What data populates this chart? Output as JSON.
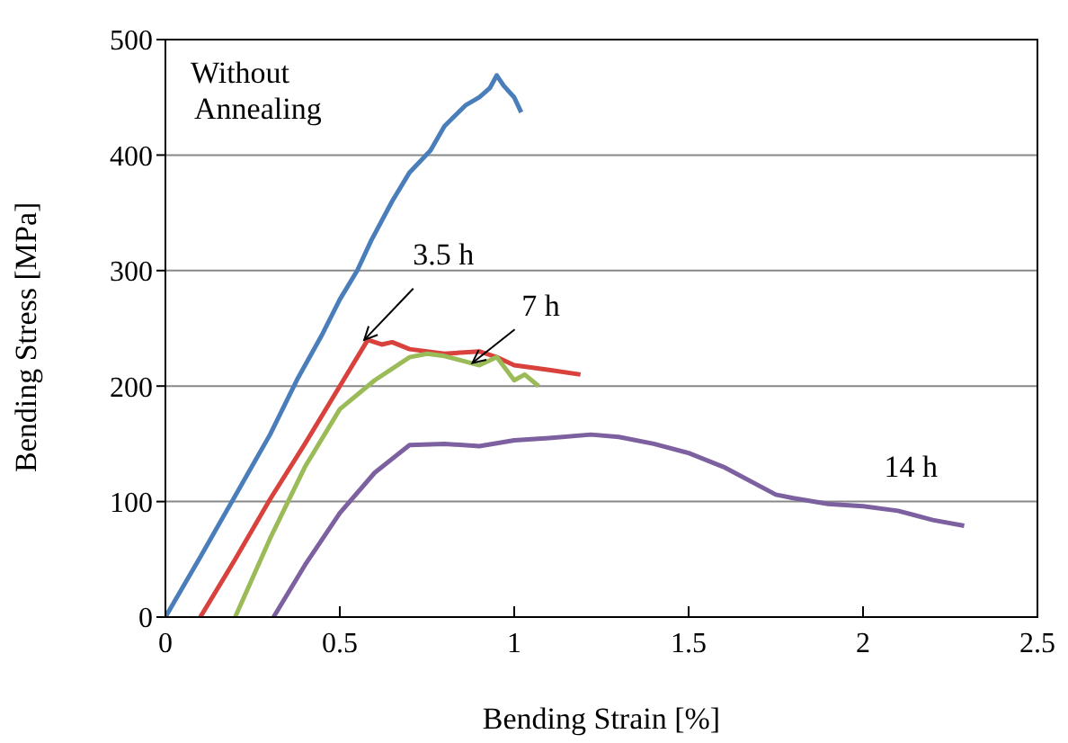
{
  "chart_data": {
    "type": "line",
    "xlabel": "Bending Strain [%]",
    "ylabel": "Bending Stress [MPa]",
    "xlim": [
      0,
      2.5
    ],
    "xticks": [
      0,
      0.5,
      1,
      1.5,
      2,
      2.5
    ],
    "ylim": [
      0,
      500
    ],
    "yticks": [
      0,
      100,
      200,
      300,
      400,
      500
    ],
    "grid": "y",
    "marker": "none",
    "line_style": "solid",
    "annotations": [
      "Without Annealing",
      {
        "text": "3.5 h",
        "x": 0.57,
        "y": 240
      },
      {
        "text": "7 h",
        "x": 0.88,
        "y": 220
      },
      "14 h"
    ],
    "series": [
      {
        "color": "#4a7ebb",
        "x": [
          0,
          0.1,
          0.2,
          0.3,
          0.38,
          0.45,
          0.5,
          0.55,
          0.59,
          0.65,
          0.7,
          0.76,
          0.8,
          0.86,
          0.9,
          0.93,
          0.95,
          0.97,
          1.0,
          1.02
        ],
        "values": [
          0,
          52,
          105,
          158,
          207,
          245,
          275,
          300,
          326,
          360,
          385,
          404,
          425,
          443,
          450,
          458,
          469,
          460,
          450,
          437
        ]
      },
      {
        "color": "#d9413c",
        "x": [
          0.1,
          0.2,
          0.3,
          0.4,
          0.5,
          0.58,
          0.62,
          0.65,
          0.7,
          0.8,
          0.9,
          0.95,
          1.0,
          1.1,
          1.19
        ],
        "values": [
          0,
          50,
          102,
          150,
          200,
          240,
          236,
          238,
          232,
          228,
          230,
          225,
          218,
          214,
          210
        ]
      },
      {
        "color": "#9bbb59",
        "x": [
          0.2,
          0.3,
          0.4,
          0.5,
          0.6,
          0.7,
          0.75,
          0.8,
          0.85,
          0.9,
          0.95,
          1.0,
          1.03,
          1.07
        ],
        "values": [
          0,
          68,
          130,
          180,
          205,
          225,
          228,
          226,
          222,
          218,
          225,
          205,
          210,
          200
        ]
      },
      {
        "color": "#7d60a0",
        "x": [
          0.31,
          0.4,
          0.5,
          0.6,
          0.7,
          0.8,
          0.9,
          1.0,
          1.1,
          1.22,
          1.3,
          1.4,
          1.5,
          1.6,
          1.75,
          1.8,
          1.9,
          2.0,
          2.1,
          2.2,
          2.29
        ],
        "values": [
          0,
          45,
          90,
          125,
          149,
          150,
          148,
          153,
          155,
          158,
          156,
          150,
          142,
          130,
          106,
          103,
          98,
          96,
          92,
          84,
          79
        ]
      }
    ]
  }
}
